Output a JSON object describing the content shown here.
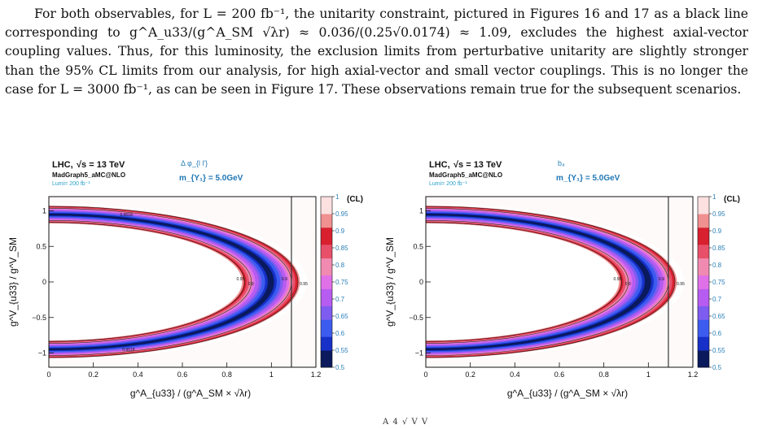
{
  "paragraph": {
    "text": "For both observables, for L = 200 fb⁻¹, the unitarity constraint, pictured in Figures 16 and 17 as a black line corresponding to g^A_u33/(g^A_SM √λr) ≈ 0.036/(0.25√0.0174) ≈ 1.09, excludes the highest axial-vector coupling values. Thus, for this luminosity, the exclusion limits from perturbative unitarity are slightly stronger than the 95% CL limits from our analysis, for high axial-vector and small vector couplings. This is no longer the case for L = 3000 fb⁻¹, as can be seen in Figure 17. These observations remain true for the subsequent scenarios."
  },
  "plots": [
    {
      "header_lhc": "LHC,",
      "header_sqrt": "√s = 13 TeV",
      "header_generator": "MadGraph5_aMC@NLO",
      "header_lumi": "Lumi= 200 fb⁻¹",
      "observable": "Δ φ_{l l'}",
      "mass": "m_{Y₁} = 5.0GeV",
      "y_axis_title": "g^V_{u33} / g^V_SM",
      "x_axis_title": "g^A_{u33} / (g^A_SM × √λr)",
      "contour_labels": [
        "0.95",
        "0.9",
        "0.9",
        "0.95"
      ],
      "top_arc_label": "0.9518",
      "bottom_arc_label": "0.9518"
    },
    {
      "header_lhc": "LHC,",
      "header_sqrt": "√s = 13 TeV",
      "header_generator": "MadGraph5_aMC@NLO",
      "header_lumi": "Lumi= 200 fb⁻¹",
      "observable": "b₄",
      "mass": "m_{Y₁} = 5.0GeV",
      "y_axis_title": "g^V_{u33} / g^V_SM",
      "x_axis_title": "g^A_{u33} / (g^A_SM × √λr)",
      "contour_labels": [
        "0.95",
        "0.9",
        "0.9",
        "0.95"
      ],
      "top_arc_label": "",
      "bottom_arc_label": ""
    }
  ],
  "chart_data": [
    {
      "type": "heatmap",
      "x": {
        "range": [
          0,
          1.2
        ],
        "ticks": [
          0,
          0.2,
          0.4,
          0.6,
          0.8,
          1,
          1.2
        ],
        "tick_labels": [
          "0",
          "0.2",
          "0.4",
          "0.6",
          "0.8",
          "1",
          "1.2"
        ]
      },
      "y": {
        "range": [
          -1.2,
          1.2
        ],
        "ticks": [
          -1,
          -0.5,
          0,
          0.5,
          1
        ],
        "tick_labels": [
          "−1",
          "−0.5",
          "0",
          "0.5",
          "1"
        ]
      },
      "z": {
        "range": [
          0.5,
          1
        ],
        "label": "(CL)",
        "ticks": [
          0.5,
          0.55,
          0.6,
          0.65,
          0.7,
          0.75,
          0.8,
          0.85,
          0.9,
          0.95,
          1
        ],
        "tick_labels": [
          "0.5",
          "0.55",
          "0.6",
          "0.65",
          "0.7",
          "0.75",
          "0.8",
          "0.85",
          "0.9",
          "0.95",
          "1"
        ]
      },
      "unitarity_line_x": 1.09,
      "contours": [
        0.9,
        0.95
      ],
      "band": {
        "peak_x": 1.0,
        "cl_min_inner": 0.5
      }
    },
    {
      "type": "heatmap",
      "x": {
        "range": [
          0,
          1.2
        ],
        "ticks": [
          0,
          0.2,
          0.4,
          0.6,
          0.8,
          1,
          1.2
        ],
        "tick_labels": [
          "0",
          "0.2",
          "0.4",
          "0.6",
          "0.8",
          "1",
          "1.2"
        ]
      },
      "y": {
        "range": [
          -1.2,
          1.2
        ],
        "ticks": [
          -1,
          -0.5,
          0,
          0.5,
          1
        ],
        "tick_labels": [
          "−1",
          "−0.5",
          "0",
          "0.5",
          "1"
        ]
      },
      "z": {
        "range": [
          0.5,
          1
        ],
        "label": "(CL)",
        "ticks": [
          0.5,
          0.55,
          0.6,
          0.65,
          0.7,
          0.75,
          0.8,
          0.85,
          0.9,
          0.95,
          1
        ],
        "tick_labels": [
          "0.5",
          "0.55",
          "0.6",
          "0.65",
          "0.7",
          "0.75",
          "0.8",
          "0.85",
          "0.9",
          "0.95",
          "1"
        ]
      },
      "unitarity_line_x": 1.09,
      "contours": [
        0.9,
        0.95
      ],
      "band": {
        "peak_x": 1.0,
        "cl_min_inner": 0.5
      }
    }
  ],
  "caption_fragment": "A 4   √   V  V",
  "colors": {
    "text": "#111111",
    "blue_label": "#1f77b4",
    "cyan_label": "#2aa0c8",
    "palette": [
      "#0a1a5c",
      "#1730c8",
      "#3c5cf0",
      "#7e5cf0",
      "#b65cf0",
      "#e070e8",
      "#f08ab0",
      "#e8506a",
      "#d8202e",
      "#f09090",
      "#fde0e0",
      "#ffffff"
    ]
  }
}
